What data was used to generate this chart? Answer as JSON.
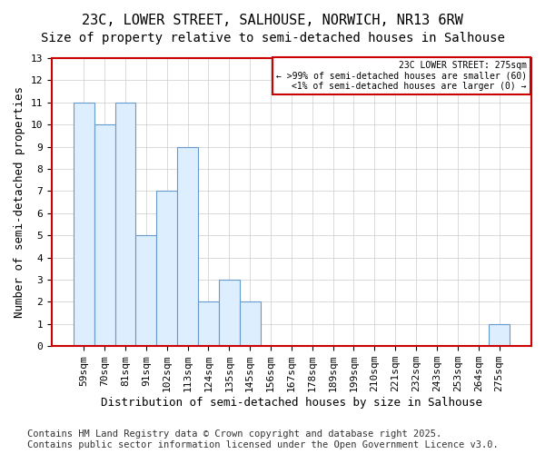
{
  "title1": "23C, LOWER STREET, SALHOUSE, NORWICH, NR13 6RW",
  "title2": "Size of property relative to semi-detached houses in Salhouse",
  "xlabel": "Distribution of semi-detached houses by size in Salhouse",
  "ylabel": "Number of semi-detached properties",
  "categories": [
    "59sqm",
    "70sqm",
    "81sqm",
    "91sqm",
    "102sqm",
    "113sqm",
    "124sqm",
    "135sqm",
    "145sqm",
    "156sqm",
    "167sqm",
    "178sqm",
    "189sqm",
    "199sqm",
    "210sqm",
    "221sqm",
    "232sqm",
    "243sqm",
    "253sqm",
    "264sqm",
    "275sqm"
  ],
  "values": [
    11,
    10,
    11,
    5,
    7,
    9,
    2,
    3,
    2,
    0,
    0,
    0,
    0,
    0,
    0,
    0,
    0,
    0,
    0,
    0,
    1
  ],
  "bar_color": "#ddeeff",
  "bar_edge_color": "#6699cc",
  "ylim": [
    0,
    13
  ],
  "yticks": [
    0,
    1,
    2,
    3,
    4,
    5,
    6,
    7,
    8,
    9,
    10,
    11,
    12,
    13
  ],
  "legend_title": "23C LOWER STREET: 275sqm",
  "legend_line1": "← >99% of semi-detached houses are smaller (60)",
  "legend_line2": "<1% of semi-detached houses are larger (0) →",
  "legend_box_color": "#ffffff",
  "legend_edge_color": "#cc0000",
  "footer1": "Contains HM Land Registry data © Crown copyright and database right 2025.",
  "footer2": "Contains public sector information licensed under the Open Government Licence v3.0.",
  "bg_color": "#ffffff",
  "grid_color": "#cccccc",
  "axes_border_color": "#cc0000",
  "title_fontsize": 11,
  "subtitle_fontsize": 10,
  "axis_label_fontsize": 9,
  "tick_fontsize": 8,
  "footer_fontsize": 7.5
}
